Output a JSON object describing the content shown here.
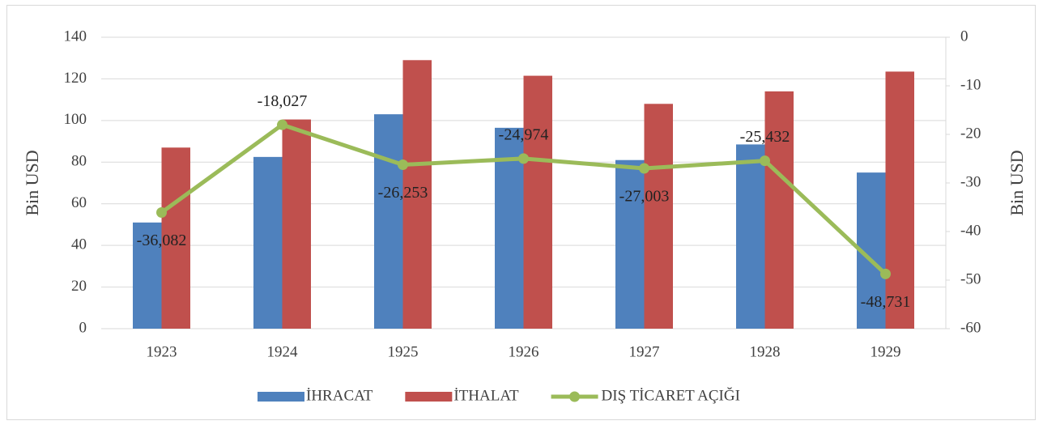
{
  "chart_data": {
    "type": "bar_line",
    "categories": [
      "1923",
      "1924",
      "1925",
      "1926",
      "1927",
      "1928",
      "1929"
    ],
    "series": [
      {
        "name": "İHRACAT",
        "color": "#4f81bd",
        "type": "bar",
        "values": [
          51,
          82.5,
          103,
          96.5,
          81,
          88.5,
          75
        ]
      },
      {
        "name": "İTHALAT",
        "color": "#c0504d",
        "type": "bar",
        "values": [
          87,
          100.5,
          129,
          121.5,
          108,
          114,
          123.5
        ]
      },
      {
        "name": "DIŞ TİCARET AÇIĞI",
        "color": "#9bbb59",
        "type": "line",
        "axis": "y2",
        "values": [
          -36.082,
          -18.027,
          -26.253,
          -24.974,
          -27.003,
          -25.432,
          -48.731
        ],
        "value_labels": [
          "-36,082",
          "-18,027",
          "-26,253",
          "-24,974",
          "-27,003",
          "-25,432",
          "-48,731"
        ]
      }
    ],
    "ylabel": "Bin USD",
    "y2label": "Bin USD",
    "ylim": [
      0,
      140
    ],
    "yticks": [
      0,
      20,
      40,
      60,
      80,
      100,
      120,
      140
    ],
    "y2lim": [
      -60,
      0
    ],
    "y2ticks": [
      -60,
      -50,
      -40,
      -30,
      -20,
      -10,
      0
    ],
    "grid": true,
    "legend": "bottom"
  }
}
